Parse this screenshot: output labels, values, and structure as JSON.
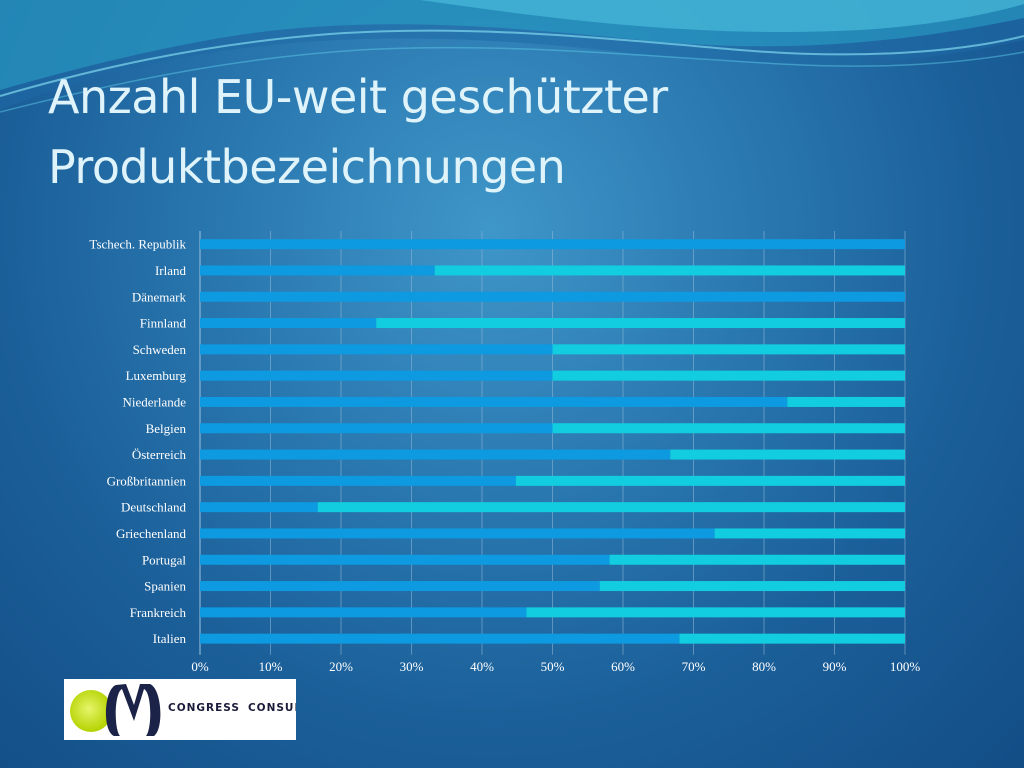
{
  "slide": {
    "title_line1": "Anzahl EU-weit geschützter",
    "title_line2": "Produktbezeichnungen"
  },
  "logo": {
    "word1": "CONGRESS",
    "word2": "CONSULT",
    "circle_color": "#c8e21a",
    "mark_color": "#1b2348"
  },
  "colors": {
    "series1": "#0d9ae0",
    "series2": "#12cde0",
    "background": "#2a78b0"
  },
  "chart_data": {
    "type": "bar",
    "orientation": "horizontal",
    "stacked": "100-percent",
    "categories": [
      "Tschech. Republik",
      "Irland",
      "Dänemark",
      "Finnland",
      "Schweden",
      "Luxemburg",
      "Niederlande",
      "Belgien",
      "Österreich",
      "Großbritannien",
      "Deutschland",
      "Griechenland",
      "Portugal",
      "Spanien",
      "Frankreich",
      "Italien"
    ],
    "series": [
      {
        "values": [
          100,
          33.3,
          100,
          25,
          50,
          50,
          83.3,
          50,
          66.7,
          44.8,
          16.7,
          73,
          58.1,
          56.7,
          46.3,
          68
        ]
      },
      {
        "values": [
          0,
          66.7,
          0,
          75,
          50,
          50,
          16.7,
          50,
          33.3,
          55.2,
          83.3,
          27,
          41.9,
          43.3,
          53.7,
          32
        ]
      }
    ],
    "xlim": [
      0,
      100
    ],
    "xticks": [
      "0%",
      "10%",
      "20%",
      "30%",
      "40%",
      "50%",
      "60%",
      "70%",
      "80%",
      "90%",
      "100%"
    ],
    "grid": true,
    "legend": "none"
  }
}
